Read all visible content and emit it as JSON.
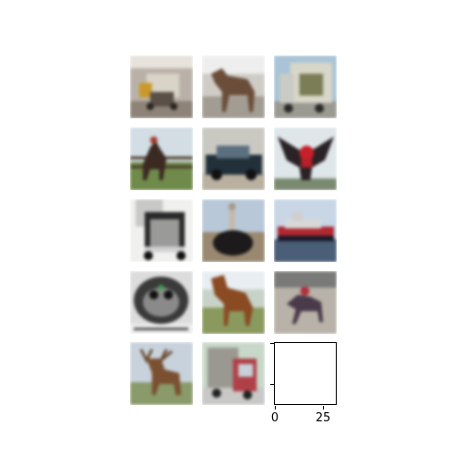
{
  "figure": {
    "tiles": [
      {
        "subject": "truck"
      },
      {
        "subject": "horse"
      },
      {
        "subject": "truck"
      },
      {
        "subject": "horse"
      },
      {
        "subject": "automobile"
      },
      {
        "subject": "bird"
      },
      {
        "subject": "truck"
      },
      {
        "subject": "bird"
      },
      {
        "subject": "ship"
      },
      {
        "subject": "bird"
      },
      {
        "subject": "horse"
      },
      {
        "subject": "horse"
      },
      {
        "subject": "deer"
      },
      {
        "subject": "truck"
      }
    ],
    "empty_axes": {
      "xtick_labels": [
        "0",
        "25"
      ]
    }
  }
}
